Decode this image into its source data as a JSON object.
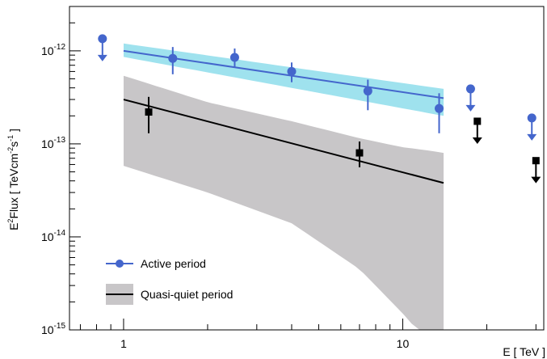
{
  "chart_data": {
    "type": "scatter",
    "title": "",
    "xlabel": "E [ TeV ]",
    "ylabel_parts": [
      "E",
      "2",
      "Flux [ TeVcm",
      "-2",
      "s",
      "-1",
      " ]"
    ],
    "x_scale": "log",
    "y_scale": "log",
    "xlim": [
      0.64,
      32
    ],
    "ylim": [
      1e-15,
      3e-12
    ],
    "x_ticks": [
      {
        "value": 1,
        "label": "1"
      },
      {
        "value": 10,
        "label": "10"
      }
    ],
    "y_ticks": [
      {
        "value": 1e-15,
        "base": "10",
        "exp": "-15"
      },
      {
        "value": 1e-14,
        "base": "10",
        "exp": "-14"
      },
      {
        "value": 1e-13,
        "base": "10",
        "exp": "-13"
      },
      {
        "value": 1e-12,
        "base": "10",
        "exp": "-12"
      }
    ],
    "grid": false,
    "legend_position": "bottom-left",
    "series": [
      {
        "name": "Active period",
        "color": "#4466cc",
        "band_color": "#7fd8e8",
        "marker": "circle",
        "points": [
          {
            "x": 1.5,
            "y": 8.3e-13,
            "ylo": 5.6e-13,
            "yhi": 1.1e-12
          },
          {
            "x": 2.5,
            "y": 8.5e-13,
            "ylo": 6.6e-13,
            "yhi": 1.06e-12
          },
          {
            "x": 4.0,
            "y": 6e-13,
            "ylo": 4.6e-13,
            "yhi": 7.5e-13
          },
          {
            "x": 7.5,
            "y": 3.7e-13,
            "ylo": 2.3e-13,
            "yhi": 4.9e-13
          },
          {
            "x": 13.5,
            "y": 2.4e-13,
            "ylo": 1.3e-13,
            "yhi": 3.5e-13
          }
        ],
        "upper_limits": [
          {
            "x": 0.84,
            "y": 1.35e-12
          },
          {
            "x": 17.5,
            "y": 3.9e-13
          },
          {
            "x": 29,
            "y": 1.9e-13
          }
        ],
        "fit": {
          "x": [
            1,
            14
          ],
          "y": [
            1e-12,
            3.1e-13
          ]
        },
        "band": {
          "x": [
            1,
            14
          ],
          "ylo": [
            8.6e-13,
            2e-13
          ],
          "yhi": [
            1.2e-12,
            3.9e-13
          ]
        }
      },
      {
        "name": "Quasi-quiet period",
        "color": "#000000",
        "band_color": "#c8c6c8",
        "marker": "square",
        "points": [
          {
            "x": 1.23,
            "y": 2.2e-13,
            "ylo": 1.3e-13,
            "yhi": 3.2e-13
          },
          {
            "x": 7.0,
            "y": 8e-14,
            "ylo": 5.6e-14,
            "yhi": 1.06e-13
          }
        ],
        "upper_limits": [
          {
            "x": 18.5,
            "y": 1.75e-13
          },
          {
            "x": 30,
            "y": 6.6e-14
          }
        ],
        "fit": {
          "x": [
            1,
            14
          ],
          "y": [
            3e-13,
            3.8e-14
          ]
        },
        "band": {
          "x": [
            1,
            2,
            4,
            7,
            10,
            12,
            14
          ],
          "ylo": [
            5.8e-14,
            3e-14,
            1.4e-14,
            4.5e-15,
            1.5e-15,
            8e-16,
            8e-16
          ],
          "yhi": [
            5.4e-13,
            2.8e-13,
            1.75e-13,
            1.15e-13,
            9.2e-14,
            8.6e-14,
            8e-14
          ]
        }
      }
    ]
  }
}
